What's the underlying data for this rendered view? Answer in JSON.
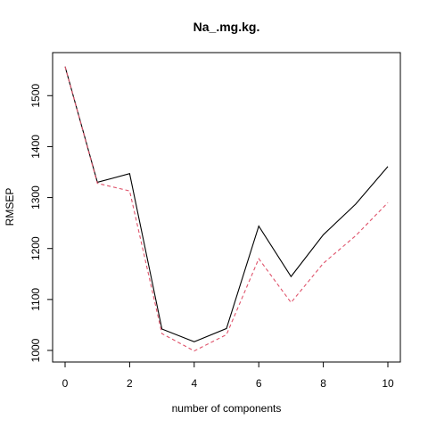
{
  "chart_data": {
    "type": "line",
    "title": "Na_.mg.kg.",
    "xlabel": "number of components",
    "ylabel": "RMSEP",
    "x": [
      0,
      1,
      2,
      3,
      4,
      5,
      6,
      7,
      8,
      9,
      10
    ],
    "xlim": [
      0,
      10
    ],
    "ylim": [
      1000,
      1560
    ],
    "xticks": [
      "0",
      "2",
      "4",
      "6",
      "8",
      "10"
    ],
    "yticks": [
      "1000",
      "1100",
      "1200",
      "1300",
      "1400",
      "1500"
    ],
    "grid": false,
    "series": [
      {
        "values": [
          1557,
          1330,
          1347,
          1042,
          1017,
          1043,
          1244,
          1145,
          1227,
          1287,
          1361
        ],
        "color": "#000000",
        "line_style": "solid"
      },
      {
        "values": [
          1557,
          1328,
          1313,
          1033,
          999,
          1031,
          1180,
          1094,
          1171,
          1225,
          1290
        ],
        "color": "#DF536B",
        "line_style": "dashed"
      }
    ]
  }
}
